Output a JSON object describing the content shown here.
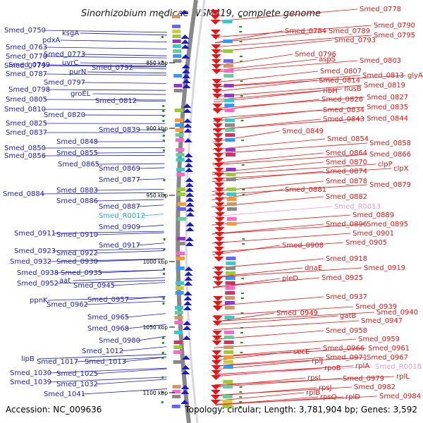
{
  "title": "Sinorhizobium medicae WSM419, complete genome",
  "accession": "Accession: NC_009636",
  "topology": "Topology: circular; Length: 3,781,904 bp; Genes: 3,592",
  "colors": {
    "minus_strand": "#1a1acc",
    "plus_strand": "#ee1111",
    "rna_minus": "#22aadd",
    "rna_plus": "#ee99cc",
    "backbone": "#888888",
    "tick": "#2e8b2e"
  },
  "ticks": [
    "850 kbp",
    "900 kbp",
    "950 kbp",
    "1000 kbp",
    "1050 kbp",
    "1100 kbp"
  ],
  "left_labels": [
    "Smed_0749",
    "Smed_0750",
    "ksgA",
    "pdxA",
    "Smed_0763",
    "Smed_0773",
    "Smed_0770",
    "uvrC",
    "Smed_0779",
    "purN",
    "Smed_0792",
    "Smed_0787",
    "Smed_0797",
    "Smed_0798",
    "groEL",
    "Smed_0805",
    "Smed_0812",
    "Smed_0810",
    "Smed_0820",
    "Smed_0825",
    "Smed_0839",
    "Smed_0837",
    "Smed_0848",
    "Smed_0850",
    "Smed_0855",
    "Smed_0856",
    "Smed_0865",
    "Smed_0869",
    "Smed_0877",
    "Smed_0883",
    "Smed_0884",
    "Smed_0886",
    "Smed_0887",
    "Smed_R0012",
    "Smed_0909",
    "Smed_0911",
    "Smed_0910",
    "Smed_0917",
    "Smed_0923",
    "Smed_0922",
    "Smed_0932",
    "Smed_0930",
    "Smed_0938",
    "Smed_0935",
    "Smed_0952",
    "aat",
    "Smed_0945",
    "ppnK",
    "Smed_0957",
    "Smed_0962",
    "Smed_0965",
    "Smed_0968",
    "Smed_0980",
    "Smed_1012",
    "lipB",
    "Smed_1017",
    "Smed_1013",
    "Smed_1030",
    "Smed_1025",
    "Smed_1039",
    "Smed_1032",
    "Smed_1041"
  ],
  "right_labels": [
    "Smed_0778",
    "Smed_0790",
    "Smed_0784",
    "Smed_0789",
    "Smed_0795",
    "Smed_0793",
    "Smed_0796",
    "aspS",
    "Smed_0803",
    "Smed_0807",
    "Smed_0813",
    "glyA",
    "Smed_0814",
    "Smed_0819",
    "ribH",
    "nusB",
    "Smed_0826",
    "Smed_0827",
    "Smed_0834",
    "Smed_0835",
    "Smed_0843",
    "Smed_0844",
    "Smed_0849",
    "Smed_0854",
    "Smed_0858",
    "Smed_0864",
    "Smed_0866",
    "Smed_0870",
    "clpP",
    "clpX",
    "Smed_0874",
    "Smed_0878",
    "Smed_0879",
    "Smed_0881",
    "Smed_0882",
    "Smed_R0013",
    "Smed_0889",
    "Smed_0896",
    "Smed_0895",
    "Smed_0901",
    "Smed_0905",
    "Smed_0908",
    "Smed_0918",
    "dnaE",
    "Smed_0919",
    "pleD",
    "Smed_0925",
    "Smed_0937",
    "Smed_0939",
    "Smed_0940",
    "Smed_0949",
    "gatB",
    "Smed_0947",
    "Smed_0958",
    "Smed_0959",
    "Smed_0966",
    "Smed_0961",
    "secE",
    "Smed_0971",
    "Smed_0967",
    "rplJ",
    "rpoB",
    "rplA",
    "Smed_R0018",
    "rplL",
    "Smed_0979",
    "rpsL",
    "Smed_0982",
    "rpsJ",
    "rplB",
    "Smed_0984",
    "rpsQ",
    "rplD"
  ]
}
